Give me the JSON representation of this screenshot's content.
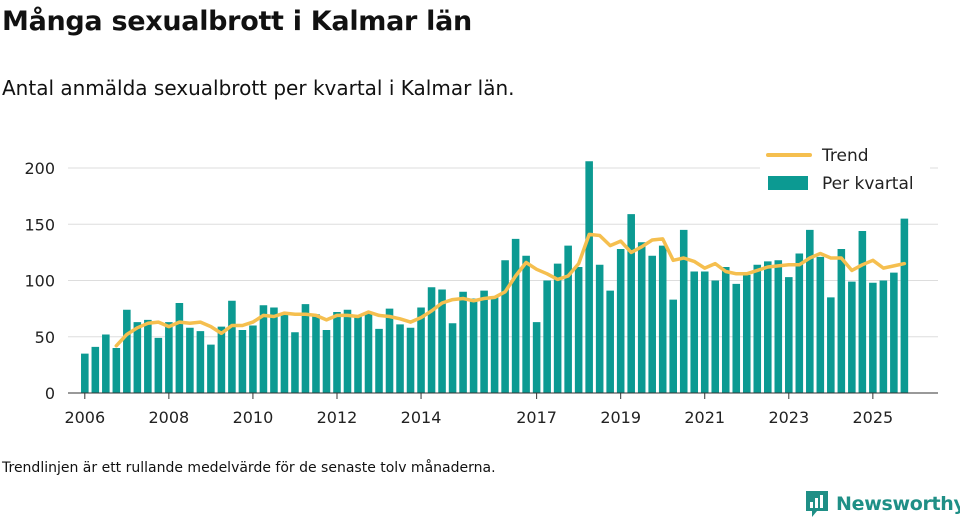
{
  "title": "Många sexualbrott i Kalmar län",
  "subtitle": "Antal anmälda sexualbrott per kvartal i Kalmar län.",
  "footnote": "Trendlinjen är ett rullande medelvärde för de senaste tolv månaderna.",
  "brand": {
    "name": "Newsworthy",
    "color": "#1f8f86"
  },
  "colors": {
    "bars": "#0c9a92",
    "trend": "#f5bf4f",
    "grid": "#dddddd",
    "axis": "#333333"
  },
  "chart_data": {
    "type": "bar",
    "title": "Många sexualbrott i Kalmar län",
    "xlabel": "",
    "ylabel": "",
    "ylim": [
      0,
      215
    ],
    "yticks": [
      0,
      50,
      100,
      150,
      200
    ],
    "xlim": [
      2005.6,
      2026.3
    ],
    "xticks": [
      {
        "x": 2006.0,
        "label": "2006"
      },
      {
        "x": 2008.0,
        "label": "2008"
      },
      {
        "x": 2010.0,
        "label": "2010"
      },
      {
        "x": 2012.0,
        "label": "2012"
      },
      {
        "x": 2014.0,
        "label": "2014"
      },
      {
        "x": 2016.75,
        "label": "2017"
      },
      {
        "x": 2018.75,
        "label": "2019"
      },
      {
        "x": 2020.75,
        "label": "2021"
      },
      {
        "x": 2022.75,
        "label": "2023"
      },
      {
        "x": 2024.75,
        "label": "2025"
      }
    ],
    "legend": {
      "position": "top-right",
      "trend_label": "Trend",
      "bars_label": "Per kvartal"
    },
    "start": 2006.0,
    "step": 0.25,
    "series": [
      {
        "name": "Per kvartal",
        "kind": "bar",
        "values": [
          35,
          41,
          52,
          40,
          74,
          63,
          65,
          49,
          63,
          80,
          58,
          55,
          43,
          59,
          82,
          56,
          60,
          78,
          76,
          70,
          54,
          79,
          70,
          56,
          72,
          74,
          69,
          72,
          57,
          75,
          61,
          58,
          76,
          94,
          92,
          62,
          90,
          84,
          91,
          85,
          118,
          137,
          122,
          63,
          100,
          115,
          131,
          112,
          206,
          114,
          91,
          128,
          159,
          134,
          122,
          131,
          83,
          145,
          108,
          108,
          100,
          112,
          97,
          105,
          114,
          117,
          118,
          103,
          124,
          145,
          121,
          85,
          128,
          99,
          144,
          98,
          100,
          107,
          155
        ]
      },
      {
        "name": "Trend",
        "kind": "line",
        "start": 2006.75,
        "values": [
          42,
          52,
          58,
          62,
          63,
          59,
          63,
          62,
          63,
          59,
          53,
          60,
          60,
          63,
          69,
          68,
          71,
          70,
          70,
          69,
          65,
          69,
          69,
          68,
          72,
          69,
          68,
          66,
          63,
          67,
          73,
          80,
          83,
          84,
          82,
          84,
          85,
          90,
          104,
          116,
          110,
          106,
          101,
          104,
          115,
          141,
          140,
          131,
          135,
          125,
          130,
          136,
          137,
          118,
          120,
          117,
          111,
          115,
          108,
          106,
          106,
          109,
          112,
          113,
          114,
          114,
          120,
          124,
          120,
          120,
          109,
          114,
          118,
          111,
          113,
          115
        ]
      }
    ]
  }
}
